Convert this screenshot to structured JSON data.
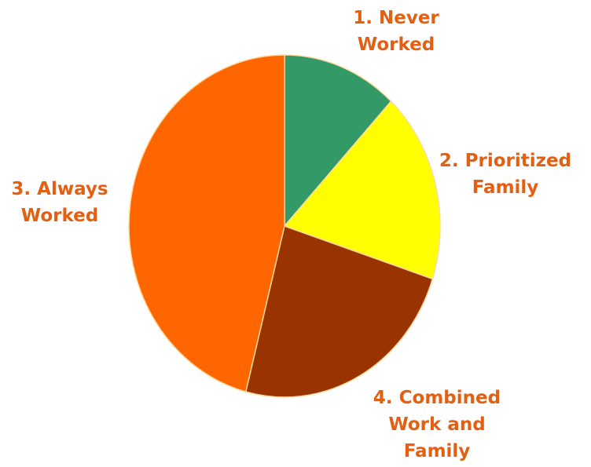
{
  "chart_data": {
    "type": "pie",
    "start_angle_deg": 0,
    "direction": "clockwise",
    "slices": [
      {
        "label": [
          "1. Never",
          "Worked"
        ],
        "value": 12,
        "color": "#339966"
      },
      {
        "label": [
          "2. Prioritized",
          "Family"
        ],
        "value": 18,
        "color": "#ffff00"
      },
      {
        "label": [
          "4. Combined",
          "Work and",
          "Family"
        ],
        "value": 24,
        "color": "#993300"
      },
      {
        "label": [
          "3. Always",
          "Worked"
        ],
        "value": 46,
        "color": "#ff6600"
      }
    ],
    "label_color": "#e35f12",
    "slice_border_color": "#ffd9a0"
  }
}
